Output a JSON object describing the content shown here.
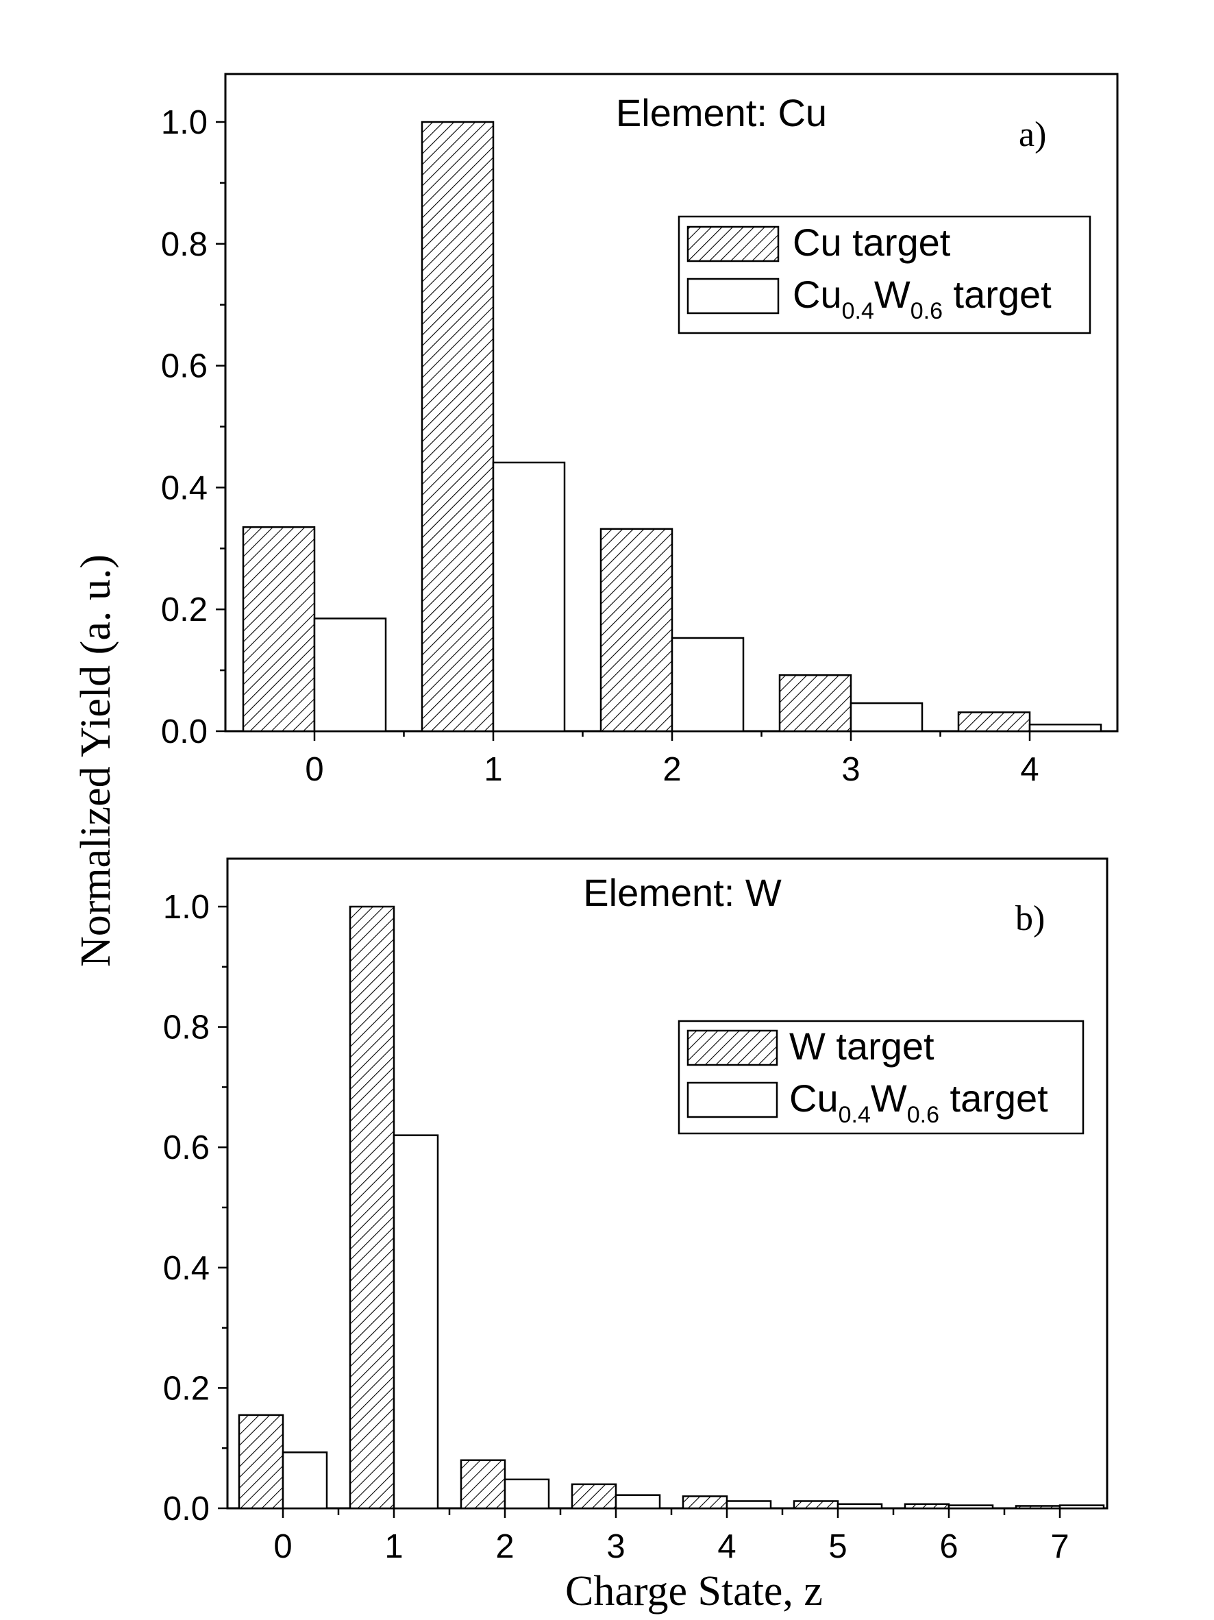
{
  "figure": {
    "ylabel": "Normalized Yield (a. u.)",
    "xlabel": "Charge State, z"
  },
  "chart_data": [
    {
      "type": "bar",
      "panel_label": "a)",
      "title": "Element: Cu",
      "xlabel": "Charge State, z",
      "ylabel": "Normalized Yield (a. u.)",
      "ylim": [
        0,
        1.08
      ],
      "yticks": [
        "0.0",
        "0.2",
        "0.4",
        "0.6",
        "0.8",
        "1.0"
      ],
      "categories": [
        "0",
        "1",
        "2",
        "3",
        "4"
      ],
      "series": [
        {
          "name": "Cu target",
          "pattern": "hatched",
          "values": [
            0.335,
            1.0,
            0.332,
            0.092,
            0.031
          ]
        },
        {
          "name": "Cu0.4W0.6 target",
          "pattern": "open",
          "values": [
            0.185,
            0.441,
            0.153,
            0.046,
            0.011
          ]
        }
      ],
      "legend": {
        "position": "upper-right",
        "entries": [
          {
            "text": "Cu target"
          },
          {
            "parts": [
              "Cu",
              "0.4",
              "W",
              "0.6",
              " target"
            ]
          }
        ]
      }
    },
    {
      "type": "bar",
      "panel_label": "b)",
      "title": "Element: W",
      "xlabel": "Charge State, z",
      "ylabel": "Normalized Yield (a. u.)",
      "ylim": [
        0,
        1.08
      ],
      "yticks": [
        "0.0",
        "0.2",
        "0.4",
        "0.6",
        "0.8",
        "1.0"
      ],
      "categories": [
        "0",
        "1",
        "2",
        "3",
        "4",
        "5",
        "6",
        "7"
      ],
      "series": [
        {
          "name": "W target",
          "pattern": "hatched",
          "values": [
            0.155,
            1.0,
            0.08,
            0.04,
            0.02,
            0.012,
            0.007,
            0.004
          ]
        },
        {
          "name": "Cu0.4W0.6 target",
          "pattern": "open",
          "values": [
            0.093,
            0.62,
            0.048,
            0.022,
            0.012,
            0.007,
            0.005,
            0.005
          ]
        }
      ],
      "legend": {
        "position": "upper-right",
        "entries": [
          {
            "text": "W target"
          },
          {
            "parts": [
              "Cu",
              "0.4",
              "W",
              "0.6",
              " target"
            ]
          }
        ]
      }
    }
  ]
}
